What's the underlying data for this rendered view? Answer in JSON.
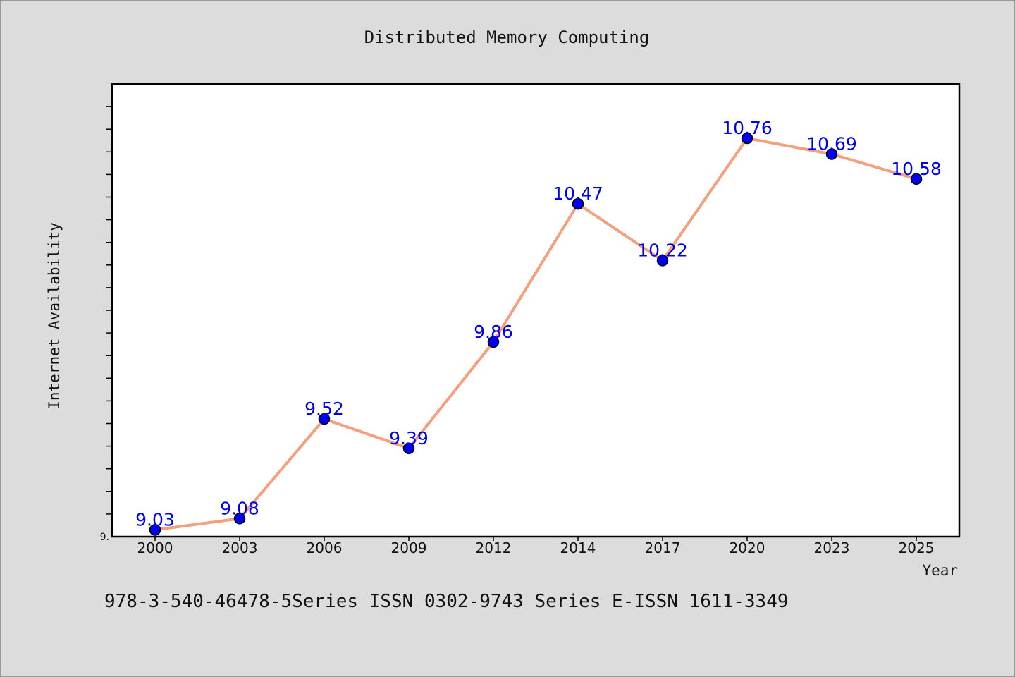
{
  "chart_data": {
    "type": "line",
    "title": "Distributed Memory Computing",
    "xlabel": "Year",
    "ylabel": "Internet Availability",
    "categories": [
      "2000",
      "2003",
      "2006",
      "2009",
      "2012",
      "2014",
      "2017",
      "2020",
      "2023",
      "2025"
    ],
    "series": [
      {
        "values": [
          9.03,
          9.08,
          9.52,
          9.39,
          9.86,
          10.47,
          10.22,
          10.76,
          10.69,
          10.58
        ]
      }
    ],
    "data_labels": [
      "9.03",
      "9.08",
      "9.52",
      "9.39",
      "9.86",
      "10.47",
      "10.22",
      "10.76",
      "10.69",
      "10.58"
    ],
    "ylim": [
      9.0,
      11.0
    ],
    "y_tick_labels": [
      "9."
    ],
    "grid": false,
    "legend": "none",
    "colors": {
      "line": "#f4a07e",
      "marker": "#0000ee",
      "marker_edge": "#000000",
      "data_label": "#0000ee"
    }
  },
  "footer": {
    "text": "978-3-540-46478-5Series ISSN 0302-9743 Series E-ISSN 1611-3349"
  }
}
